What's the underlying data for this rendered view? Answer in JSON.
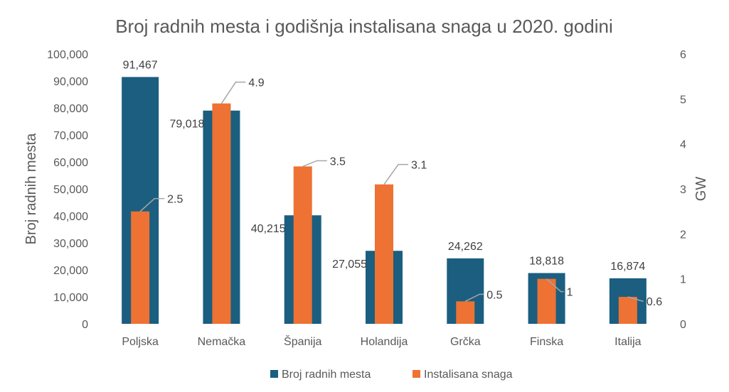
{
  "chart_data": {
    "type": "bar",
    "title": "Broj radnih mesta i godišnja instalisana snaga u 2020. godini",
    "categories": [
      "Poljska",
      "Nemačka",
      "Španija",
      "Holandija",
      "Grčka",
      "Finska",
      "Italija"
    ],
    "series": [
      {
        "name": "Broj radnih mesta",
        "axis": "left",
        "color": "#1b5e80",
        "values": [
          91467,
          79018,
          40215,
          27055,
          24262,
          18818,
          16874
        ],
        "labels": [
          "91,467",
          "79,018",
          "40,215",
          "27,055",
          "24,262",
          "18,818",
          "16,874"
        ]
      },
      {
        "name": "Instalisana snaga",
        "axis": "right",
        "color": "#ed7233",
        "values": [
          2.5,
          4.9,
          3.5,
          3.1,
          0.5,
          1,
          0.6
        ],
        "labels": [
          "2.5",
          "4.9",
          "3.5",
          "3.1",
          "0.5",
          "1",
          "0.6"
        ]
      }
    ],
    "ylabel": "Broj radnih mesta",
    "y2label": "GW",
    "ylim": [
      0,
      100000
    ],
    "y2lim": [
      0,
      6
    ],
    "yticks": [
      "0",
      "10,000",
      "20,000",
      "30,000",
      "40,000",
      "50,000",
      "60,000",
      "70,000",
      "80,000",
      "90,000",
      "100,000"
    ],
    "y2ticks": [
      "0",
      "1",
      "2",
      "3",
      "4",
      "5",
      "6"
    ],
    "gridlines": false,
    "legend_position": "bottom"
  }
}
